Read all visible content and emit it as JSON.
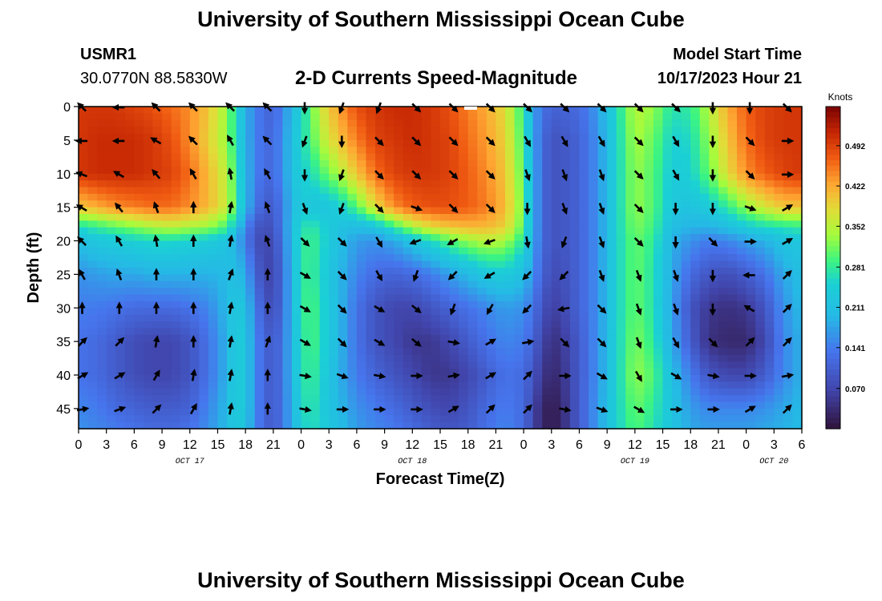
{
  "header": {
    "title": "University of Southern Mississippi Ocean Cube",
    "station_id": "USMR1",
    "station_coords": "30.0770N  88.5830W",
    "plot_title": "2-D Currents Speed-Magnitude",
    "model_label": "Model Start Time",
    "model_time": "10/17/2023 Hour 21"
  },
  "footer": {
    "title": "University of Southern Mississippi Ocean Cube"
  },
  "chart_data": {
    "type": "heatmap",
    "title": "2-D Currents Speed-Magnitude",
    "xlabel": "Forecast Time(Z)",
    "ylabel": "Depth (ft)",
    "x_tick_labels": [
      "0",
      "3",
      "6",
      "9",
      "12",
      "15",
      "18",
      "21",
      "0",
      "3",
      "6",
      "9",
      "12",
      "15",
      "18",
      "21",
      "0",
      "3",
      "6",
      "9",
      "12",
      "15",
      "18",
      "21",
      "0",
      "3",
      "6"
    ],
    "date_labels": [
      {
        "label": "OCT 17",
        "hour": 12
      },
      {
        "label": "OCT 18",
        "hour": 36
      },
      {
        "label": "OCT 19",
        "hour": 60
      },
      {
        "label": "OCT 20",
        "hour": 75
      }
    ],
    "x_range_hours": [
      0,
      78
    ],
    "y_ticks": [
      0,
      5,
      10,
      15,
      20,
      25,
      30,
      35,
      40,
      45
    ],
    "y_range_ft": [
      0,
      48
    ],
    "colorbar": {
      "label": "Knots",
      "range": [
        0,
        0.56
      ],
      "tick_values": [
        0.07,
        0.141,
        0.211,
        0.281,
        0.352,
        0.422,
        0.492
      ],
      "tick_labels": [
        "0.070",
        "0.141",
        "0.211",
        "0.281",
        "0.352",
        "0.422",
        "0.492"
      ]
    },
    "speed_field_knots": {
      "time_hours": [
        0,
        2,
        4,
        6,
        8,
        10,
        12,
        14,
        16,
        17,
        18,
        19,
        20,
        21,
        22,
        23,
        24,
        25,
        26,
        28,
        30,
        32,
        34,
        36,
        38,
        40,
        42,
        44,
        46,
        48,
        49,
        50,
        51,
        52,
        54,
        56,
        58,
        60,
        62,
        64,
        66,
        68,
        70,
        72,
        74,
        76,
        78
      ],
      "depth_ft": [
        0,
        5,
        10,
        15,
        18,
        20,
        25,
        30,
        35,
        40,
        45,
        48
      ],
      "values": [
        [
          0.5,
          0.5,
          0.5,
          0.49,
          0.48,
          0.46,
          0.44,
          0.4,
          0.33,
          0.26,
          0.19,
          0.15,
          0.12,
          0.11,
          0.15,
          0.2,
          0.25,
          0.3,
          0.36,
          0.43,
          0.48,
          0.5,
          0.51,
          0.51,
          0.5,
          0.48,
          0.45,
          0.42,
          0.38,
          0.28,
          0.18,
          0.13,
          0.11,
          0.11,
          0.12,
          0.17,
          0.26,
          0.35,
          0.33,
          0.27,
          0.28,
          0.35,
          0.42,
          0.47,
          0.49,
          0.5,
          0.5
        ],
        [
          0.5,
          0.51,
          0.51,
          0.51,
          0.5,
          0.48,
          0.44,
          0.39,
          0.33,
          0.26,
          0.19,
          0.15,
          0.12,
          0.12,
          0.16,
          0.21,
          0.26,
          0.29,
          0.34,
          0.4,
          0.45,
          0.49,
          0.5,
          0.51,
          0.5,
          0.49,
          0.46,
          0.43,
          0.39,
          0.29,
          0.18,
          0.12,
          0.09,
          0.09,
          0.11,
          0.16,
          0.25,
          0.34,
          0.31,
          0.25,
          0.26,
          0.33,
          0.4,
          0.46,
          0.49,
          0.5,
          0.5
        ],
        [
          0.5,
          0.51,
          0.51,
          0.51,
          0.5,
          0.49,
          0.46,
          0.41,
          0.35,
          0.28,
          0.2,
          0.15,
          0.12,
          0.12,
          0.16,
          0.21,
          0.25,
          0.26,
          0.29,
          0.34,
          0.4,
          0.46,
          0.49,
          0.5,
          0.5,
          0.49,
          0.47,
          0.44,
          0.4,
          0.3,
          0.19,
          0.12,
          0.09,
          0.09,
          0.11,
          0.16,
          0.25,
          0.33,
          0.3,
          0.24,
          0.25,
          0.31,
          0.38,
          0.44,
          0.47,
          0.49,
          0.5
        ],
        [
          0.4,
          0.42,
          0.44,
          0.45,
          0.46,
          0.46,
          0.44,
          0.41,
          0.36,
          0.29,
          0.2,
          0.14,
          0.1,
          0.1,
          0.14,
          0.2,
          0.24,
          0.23,
          0.22,
          0.24,
          0.3,
          0.38,
          0.44,
          0.47,
          0.48,
          0.48,
          0.47,
          0.45,
          0.41,
          0.31,
          0.19,
          0.12,
          0.09,
          0.09,
          0.11,
          0.16,
          0.25,
          0.33,
          0.3,
          0.23,
          0.22,
          0.24,
          0.28,
          0.33,
          0.37,
          0.4,
          0.4
        ],
        [
          0.26,
          0.28,
          0.3,
          0.32,
          0.34,
          0.35,
          0.34,
          0.33,
          0.29,
          0.22,
          0.15,
          0.1,
          0.08,
          0.09,
          0.14,
          0.21,
          0.26,
          0.28,
          0.26,
          0.22,
          0.2,
          0.22,
          0.28,
          0.34,
          0.38,
          0.4,
          0.41,
          0.41,
          0.39,
          0.3,
          0.19,
          0.12,
          0.09,
          0.09,
          0.11,
          0.16,
          0.25,
          0.32,
          0.29,
          0.21,
          0.19,
          0.19,
          0.21,
          0.24,
          0.26,
          0.27,
          0.28
        ],
        [
          0.21,
          0.23,
          0.24,
          0.25,
          0.26,
          0.26,
          0.25,
          0.24,
          0.22,
          0.19,
          0.14,
          0.09,
          0.07,
          0.08,
          0.13,
          0.21,
          0.27,
          0.29,
          0.27,
          0.21,
          0.17,
          0.16,
          0.18,
          0.22,
          0.26,
          0.3,
          0.33,
          0.35,
          0.34,
          0.27,
          0.18,
          0.12,
          0.09,
          0.09,
          0.11,
          0.16,
          0.25,
          0.31,
          0.28,
          0.19,
          0.16,
          0.14,
          0.15,
          0.17,
          0.19,
          0.22,
          0.23
        ],
        [
          0.16,
          0.17,
          0.18,
          0.18,
          0.19,
          0.19,
          0.19,
          0.19,
          0.2,
          0.21,
          0.18,
          0.12,
          0.07,
          0.07,
          0.12,
          0.2,
          0.27,
          0.29,
          0.26,
          0.2,
          0.15,
          0.12,
          0.11,
          0.12,
          0.14,
          0.17,
          0.2,
          0.23,
          0.24,
          0.21,
          0.16,
          0.11,
          0.08,
          0.08,
          0.11,
          0.16,
          0.25,
          0.31,
          0.27,
          0.18,
          0.12,
          0.09,
          0.08,
          0.1,
          0.13,
          0.18,
          0.21
        ],
        [
          0.14,
          0.14,
          0.13,
          0.12,
          0.12,
          0.12,
          0.13,
          0.15,
          0.2,
          0.24,
          0.21,
          0.15,
          0.09,
          0.08,
          0.12,
          0.2,
          0.27,
          0.3,
          0.27,
          0.2,
          0.13,
          0.09,
          0.07,
          0.07,
          0.09,
          0.11,
          0.13,
          0.15,
          0.17,
          0.16,
          0.13,
          0.09,
          0.06,
          0.07,
          0.11,
          0.16,
          0.25,
          0.31,
          0.27,
          0.17,
          0.09,
          0.05,
          0.04,
          0.05,
          0.09,
          0.16,
          0.2
        ],
        [
          0.13,
          0.12,
          0.1,
          0.08,
          0.07,
          0.07,
          0.09,
          0.13,
          0.19,
          0.25,
          0.22,
          0.16,
          0.11,
          0.1,
          0.13,
          0.2,
          0.26,
          0.3,
          0.27,
          0.2,
          0.13,
          0.09,
          0.07,
          0.05,
          0.05,
          0.07,
          0.1,
          0.13,
          0.15,
          0.14,
          0.11,
          0.07,
          0.04,
          0.05,
          0.1,
          0.16,
          0.25,
          0.32,
          0.28,
          0.18,
          0.1,
          0.04,
          0.03,
          0.03,
          0.07,
          0.15,
          0.19
        ],
        [
          0.13,
          0.12,
          0.1,
          0.08,
          0.07,
          0.07,
          0.09,
          0.13,
          0.19,
          0.25,
          0.22,
          0.16,
          0.11,
          0.1,
          0.13,
          0.2,
          0.26,
          0.29,
          0.26,
          0.19,
          0.14,
          0.11,
          0.09,
          0.07,
          0.05,
          0.05,
          0.07,
          0.1,
          0.13,
          0.12,
          0.09,
          0.05,
          0.03,
          0.04,
          0.1,
          0.16,
          0.25,
          0.33,
          0.3,
          0.21,
          0.14,
          0.09,
          0.07,
          0.07,
          0.1,
          0.15,
          0.19
        ],
        [
          0.15,
          0.14,
          0.12,
          0.11,
          0.1,
          0.1,
          0.11,
          0.15,
          0.2,
          0.25,
          0.22,
          0.16,
          0.11,
          0.1,
          0.13,
          0.19,
          0.25,
          0.28,
          0.25,
          0.2,
          0.16,
          0.14,
          0.12,
          0.1,
          0.08,
          0.07,
          0.09,
          0.12,
          0.14,
          0.12,
          0.07,
          0.03,
          0.01,
          0.03,
          0.1,
          0.17,
          0.25,
          0.31,
          0.28,
          0.22,
          0.17,
          0.15,
          0.15,
          0.15,
          0.16,
          0.18,
          0.2
        ],
        [
          0.16,
          0.15,
          0.14,
          0.13,
          0.12,
          0.12,
          0.13,
          0.16,
          0.2,
          0.24,
          0.21,
          0.16,
          0.11,
          0.1,
          0.13,
          0.19,
          0.24,
          0.27,
          0.25,
          0.21,
          0.17,
          0.15,
          0.14,
          0.12,
          0.1,
          0.09,
          0.1,
          0.13,
          0.15,
          0.12,
          0.07,
          0.03,
          0.01,
          0.03,
          0.1,
          0.17,
          0.25,
          0.3,
          0.27,
          0.22,
          0.18,
          0.17,
          0.17,
          0.17,
          0.18,
          0.19,
          0.2
        ]
      ]
    },
    "vectors": {
      "note": "Current direction arrows in compass degrees (direction the current flows toward, 0 = up/north)",
      "time_hours": [
        0,
        4,
        8,
        12,
        16,
        20,
        24,
        28,
        32,
        36,
        40,
        44,
        48,
        52,
        56,
        60,
        64,
        68,
        72,
        76
      ],
      "depth_ft": [
        0,
        5,
        10,
        15,
        20,
        25,
        30,
        35,
        40,
        45
      ],
      "directions_deg": [
        [
          315,
          270,
          315,
          315,
          315,
          315,
          180,
          200,
          200,
          135,
          135,
          135,
          135,
          135,
          135,
          135,
          135,
          180,
          180,
          135
        ],
        [
          270,
          270,
          300,
          315,
          330,
          315,
          200,
          180,
          135,
          135,
          135,
          135,
          150,
          150,
          150,
          135,
          150,
          180,
          135,
          90
        ],
        [
          290,
          300,
          320,
          330,
          350,
          330,
          180,
          200,
          135,
          135,
          135,
          135,
          160,
          160,
          160,
          135,
          150,
          180,
          135,
          90
        ],
        [
          300,
          320,
          340,
          0,
          10,
          340,
          160,
          200,
          135,
          110,
          135,
          135,
          180,
          160,
          160,
          135,
          180,
          180,
          110,
          60
        ],
        [
          315,
          330,
          350,
          0,
          10,
          340,
          135,
          135,
          150,
          250,
          240,
          250,
          170,
          200,
          160,
          135,
          180,
          135,
          90,
          60
        ],
        [
          330,
          340,
          0,
          0,
          20,
          0,
          120,
          135,
          150,
          200,
          225,
          240,
          225,
          225,
          160,
          160,
          160,
          180,
          270,
          45
        ],
        [
          0,
          0,
          0,
          0,
          10,
          0,
          120,
          135,
          120,
          130,
          200,
          210,
          225,
          260,
          135,
          160,
          160,
          180,
          300,
          45
        ],
        [
          45,
          45,
          10,
          0,
          10,
          20,
          120,
          135,
          120,
          130,
          100,
          60,
          80,
          135,
          135,
          160,
          150,
          135,
          45,
          45
        ],
        [
          60,
          60,
          30,
          10,
          10,
          0,
          100,
          110,
          100,
          90,
          80,
          60,
          45,
          90,
          120,
          150,
          120,
          100,
          90,
          80
        ],
        [
          80,
          70,
          45,
          30,
          10,
          0,
          100,
          90,
          90,
          90,
          60,
          45,
          45,
          100,
          110,
          120,
          90,
          90,
          60,
          45
        ]
      ]
    }
  }
}
